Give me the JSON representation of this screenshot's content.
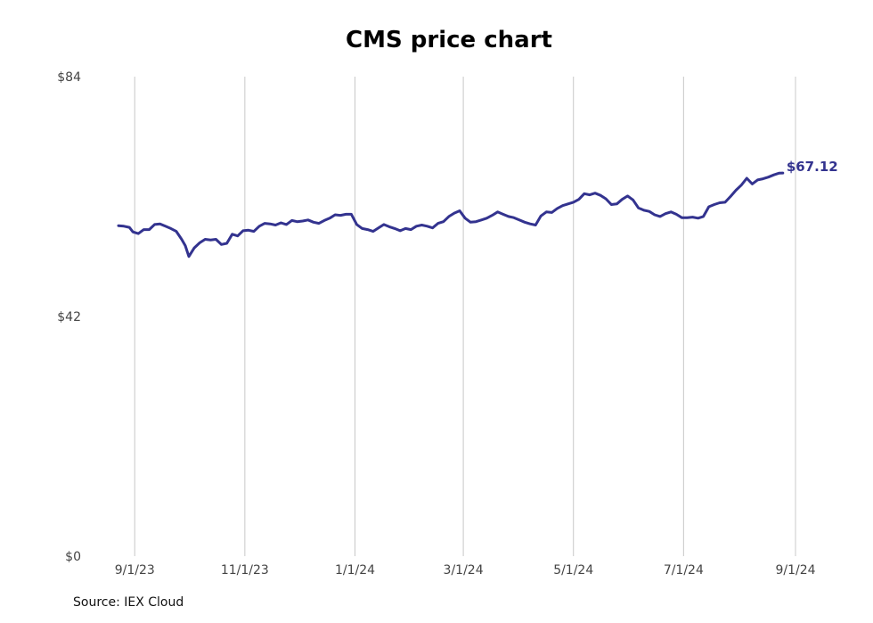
{
  "chart_data": {
    "type": "line",
    "title": "CMS price chart",
    "source": "Source: IEX Cloud",
    "xlabel": "",
    "ylabel": "",
    "ylim": [
      0,
      84
    ],
    "xlim": [
      "2023-08-23",
      "2024-09-01"
    ],
    "y_ticks": [
      {
        "value": 0,
        "label": "$0"
      },
      {
        "value": 42,
        "label": "$42"
      },
      {
        "value": 84,
        "label": "$84"
      }
    ],
    "x_ticks": [
      {
        "date": "2023-09-01",
        "label": "9/1/23"
      },
      {
        "date": "2023-11-01",
        "label": "11/1/23"
      },
      {
        "date": "2024-01-01",
        "label": "1/1/24"
      },
      {
        "date": "2024-03-01",
        "label": "3/1/24"
      },
      {
        "date": "2024-05-01",
        "label": "5/1/24"
      },
      {
        "date": "2024-07-01",
        "label": "7/1/24"
      },
      {
        "date": "2024-09-01",
        "label": "9/1/24"
      }
    ],
    "grid": {
      "vertical": true,
      "horizontal": false
    },
    "line_color": "#33338f",
    "end_label": "$67.12",
    "series": [
      {
        "points": [
          [
            "2023-08-23",
            57.9
          ],
          [
            "2023-08-26",
            57.8
          ],
          [
            "2023-08-29",
            57.6
          ],
          [
            "2023-08-31",
            56.8
          ],
          [
            "2023-09-03",
            56.5
          ],
          [
            "2023-09-06",
            57.2
          ],
          [
            "2023-09-09",
            57.2
          ],
          [
            "2023-09-12",
            58.1
          ],
          [
            "2023-09-15",
            58.2
          ],
          [
            "2023-09-18",
            57.8
          ],
          [
            "2023-09-21",
            57.4
          ],
          [
            "2023-09-24",
            56.9
          ],
          [
            "2023-09-27",
            55.5
          ],
          [
            "2023-09-29",
            54.4
          ],
          [
            "2023-10-01",
            52.5
          ],
          [
            "2023-10-04",
            54.0
          ],
          [
            "2023-10-07",
            54.9
          ],
          [
            "2023-10-10",
            55.5
          ],
          [
            "2023-10-13",
            55.4
          ],
          [
            "2023-10-16",
            55.5
          ],
          [
            "2023-10-19",
            54.6
          ],
          [
            "2023-10-22",
            54.8
          ],
          [
            "2023-10-25",
            56.4
          ],
          [
            "2023-10-28",
            56.1
          ],
          [
            "2023-10-31",
            57.0
          ],
          [
            "2023-11-03",
            57.1
          ],
          [
            "2023-11-06",
            56.9
          ],
          [
            "2023-11-09",
            57.8
          ],
          [
            "2023-11-12",
            58.3
          ],
          [
            "2023-11-15",
            58.2
          ],
          [
            "2023-11-18",
            58.0
          ],
          [
            "2023-11-21",
            58.4
          ],
          [
            "2023-11-24",
            58.1
          ],
          [
            "2023-11-27",
            58.8
          ],
          [
            "2023-11-30",
            58.6
          ],
          [
            "2023-12-03",
            58.7
          ],
          [
            "2023-12-06",
            58.9
          ],
          [
            "2023-12-09",
            58.5
          ],
          [
            "2023-12-12",
            58.3
          ],
          [
            "2023-12-15",
            58.8
          ],
          [
            "2023-12-18",
            59.2
          ],
          [
            "2023-12-21",
            59.8
          ],
          [
            "2023-12-24",
            59.7
          ],
          [
            "2023-12-27",
            59.9
          ],
          [
            "2023-12-30",
            59.9
          ],
          [
            "2024-01-02",
            58.1
          ],
          [
            "2024-01-05",
            57.4
          ],
          [
            "2024-01-08",
            57.2
          ],
          [
            "2024-01-11",
            56.9
          ],
          [
            "2024-01-14",
            57.5
          ],
          [
            "2024-01-17",
            58.1
          ],
          [
            "2024-01-20",
            57.7
          ],
          [
            "2024-01-23",
            57.4
          ],
          [
            "2024-01-26",
            57.0
          ],
          [
            "2024-01-29",
            57.4
          ],
          [
            "2024-02-01",
            57.2
          ],
          [
            "2024-02-04",
            57.8
          ],
          [
            "2024-02-07",
            58.0
          ],
          [
            "2024-02-10",
            57.8
          ],
          [
            "2024-02-13",
            57.5
          ],
          [
            "2024-02-16",
            58.3
          ],
          [
            "2024-02-19",
            58.6
          ],
          [
            "2024-02-22",
            59.5
          ],
          [
            "2024-02-25",
            60.1
          ],
          [
            "2024-02-28",
            60.5
          ],
          [
            "2024-03-02",
            59.2
          ],
          [
            "2024-03-05",
            58.5
          ],
          [
            "2024-03-08",
            58.6
          ],
          [
            "2024-03-11",
            58.9
          ],
          [
            "2024-03-14",
            59.2
          ],
          [
            "2024-03-17",
            59.7
          ],
          [
            "2024-03-20",
            60.3
          ],
          [
            "2024-03-23",
            59.9
          ],
          [
            "2024-03-26",
            59.5
          ],
          [
            "2024-03-29",
            59.3
          ],
          [
            "2024-04-01",
            58.9
          ],
          [
            "2024-04-04",
            58.5
          ],
          [
            "2024-04-07",
            58.2
          ],
          [
            "2024-04-10",
            58.0
          ],
          [
            "2024-04-13",
            59.6
          ],
          [
            "2024-04-16",
            60.3
          ],
          [
            "2024-04-19",
            60.2
          ],
          [
            "2024-04-22",
            60.9
          ],
          [
            "2024-04-25",
            61.4
          ],
          [
            "2024-04-28",
            61.7
          ],
          [
            "2024-05-01",
            62.0
          ],
          [
            "2024-05-04",
            62.5
          ],
          [
            "2024-05-07",
            63.5
          ],
          [
            "2024-05-10",
            63.3
          ],
          [
            "2024-05-13",
            63.6
          ],
          [
            "2024-05-16",
            63.2
          ],
          [
            "2024-05-19",
            62.6
          ],
          [
            "2024-05-22",
            61.6
          ],
          [
            "2024-05-25",
            61.7
          ],
          [
            "2024-05-28",
            62.5
          ],
          [
            "2024-05-31",
            63.1
          ],
          [
            "2024-06-03",
            62.4
          ],
          [
            "2024-06-06",
            61.0
          ],
          [
            "2024-06-09",
            60.6
          ],
          [
            "2024-06-12",
            60.4
          ],
          [
            "2024-06-15",
            59.8
          ],
          [
            "2024-06-18",
            59.5
          ],
          [
            "2024-06-21",
            60.0
          ],
          [
            "2024-06-24",
            60.3
          ],
          [
            "2024-06-27",
            59.9
          ],
          [
            "2024-06-30",
            59.3
          ],
          [
            "2024-07-03",
            59.3
          ],
          [
            "2024-07-06",
            59.4
          ],
          [
            "2024-07-09",
            59.2
          ],
          [
            "2024-07-12",
            59.5
          ],
          [
            "2024-07-15",
            61.2
          ],
          [
            "2024-07-18",
            61.6
          ],
          [
            "2024-07-21",
            61.9
          ],
          [
            "2024-07-24",
            62.0
          ],
          [
            "2024-07-27",
            63.0
          ],
          [
            "2024-07-30",
            64.1
          ],
          [
            "2024-08-02",
            65.0
          ],
          [
            "2024-08-05",
            66.2
          ],
          [
            "2024-08-08",
            65.2
          ],
          [
            "2024-08-11",
            65.9
          ],
          [
            "2024-08-14",
            66.1
          ],
          [
            "2024-08-17",
            66.4
          ],
          [
            "2024-08-20",
            66.8
          ],
          [
            "2024-08-23",
            67.1
          ],
          [
            "2024-08-25",
            67.12
          ]
        ]
      }
    ]
  }
}
